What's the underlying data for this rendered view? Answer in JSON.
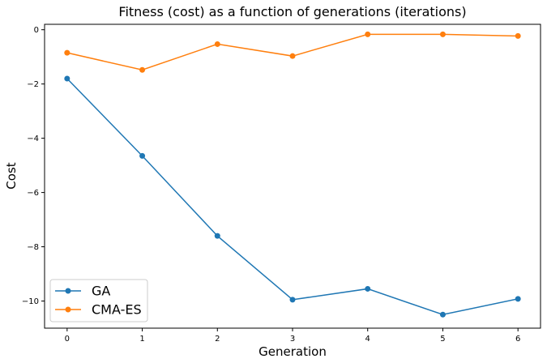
{
  "chart_data": {
    "type": "line",
    "title": "Fitness (cost) as a function of generations (iterations)",
    "xlabel": "Generation",
    "ylabel": "Cost",
    "x": [
      0,
      1,
      2,
      3,
      4,
      5,
      6
    ],
    "xlim": [
      -0.3,
      6.3
    ],
    "ylim": [
      -11.0,
      0.2
    ],
    "xticks": [
      "0",
      "1",
      "2",
      "3",
      "4",
      "5",
      "6"
    ],
    "yticks": [
      {
        "value": 0,
        "label": "0"
      },
      {
        "value": -2,
        "label": "−2"
      },
      {
        "value": -4,
        "label": "−4"
      },
      {
        "value": -6,
        "label": "−6"
      },
      {
        "value": -8,
        "label": "−8"
      },
      {
        "value": -10,
        "label": "−10"
      }
    ],
    "grid": false,
    "legend_position": "lower-left",
    "series": [
      {
        "name": "GA",
        "color": "#1f77b4",
        "marker": "circle",
        "values": [
          -1.8,
          -4.65,
          -7.6,
          -9.95,
          -9.55,
          -10.5,
          -9.92
        ]
      },
      {
        "name": "CMA-ES",
        "color": "#ff7f0e",
        "marker": "circle",
        "values": [
          -0.85,
          -1.48,
          -0.53,
          -0.97,
          -0.17,
          -0.17,
          -0.23
        ]
      }
    ]
  }
}
